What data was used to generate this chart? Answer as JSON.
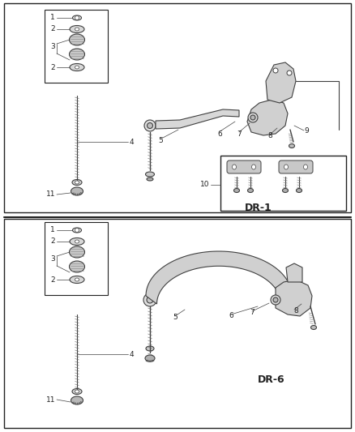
{
  "bg_color": "#ffffff",
  "line_color": "#404040",
  "border_color": "#222222",
  "text_color": "#222222",
  "fig_width": 4.38,
  "fig_height": 5.33,
  "dpi": 100,
  "diagram1_label": "DR-1",
  "diagram2_label": "DR-6"
}
